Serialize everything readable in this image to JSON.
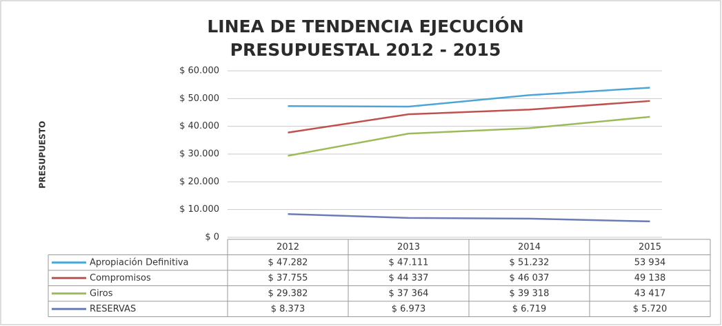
{
  "chart_data": {
    "type": "line",
    "title": [
      "LINEA DE TENDENCIA EJECUCIÓN",
      "PRESUPUESTAL 2012 - 2015"
    ],
    "y_label": "PRESUPUESTO",
    "categories": [
      "2012",
      "2013",
      "2014",
      "2015"
    ],
    "ylim": [
      0,
      60000
    ],
    "yticks": [
      {
        "value": 0,
        "label": "$ 0"
      },
      {
        "value": 10000,
        "label": "$ 10.000"
      },
      {
        "value": 20000,
        "label": "$ 20.000"
      },
      {
        "value": 30000,
        "label": "$ 30.000"
      },
      {
        "value": 40000,
        "label": "$ 40.000"
      },
      {
        "value": 50000,
        "label": "$ 50.000"
      },
      {
        "value": 60000,
        "label": "$ 60.000"
      }
    ],
    "grid": true,
    "series": [
      {
        "name": "Apropiación Definitiva",
        "color": "#4aa6d6",
        "values": [
          47282,
          47111,
          51232,
          53934
        ],
        "value_labels": [
          "$ 47.282",
          "$ 47.111",
          "$ 51.232",
          "53 934"
        ]
      },
      {
        "name": "Compromisos",
        "color": "#c0504d",
        "values": [
          37755,
          44337,
          46037,
          49138
        ],
        "value_labels": [
          "$ 37.755",
          "$ 44 337",
          "$ 46 037",
          "49 138"
        ]
      },
      {
        "name": "Giros",
        "color": "#9bbb59",
        "values": [
          29382,
          37364,
          39318,
          43417
        ],
        "value_labels": [
          "$ 29.382",
          "$ 37 364",
          "$ 39 318",
          "43 417"
        ]
      },
      {
        "name": "RESERVAS",
        "color": "#6b7bb5",
        "values": [
          8373,
          6973,
          6719,
          5720
        ],
        "value_labels": [
          "$ 8.373",
          "$ 6.973",
          "$ 6.719",
          "$ 5.720"
        ]
      }
    ]
  }
}
